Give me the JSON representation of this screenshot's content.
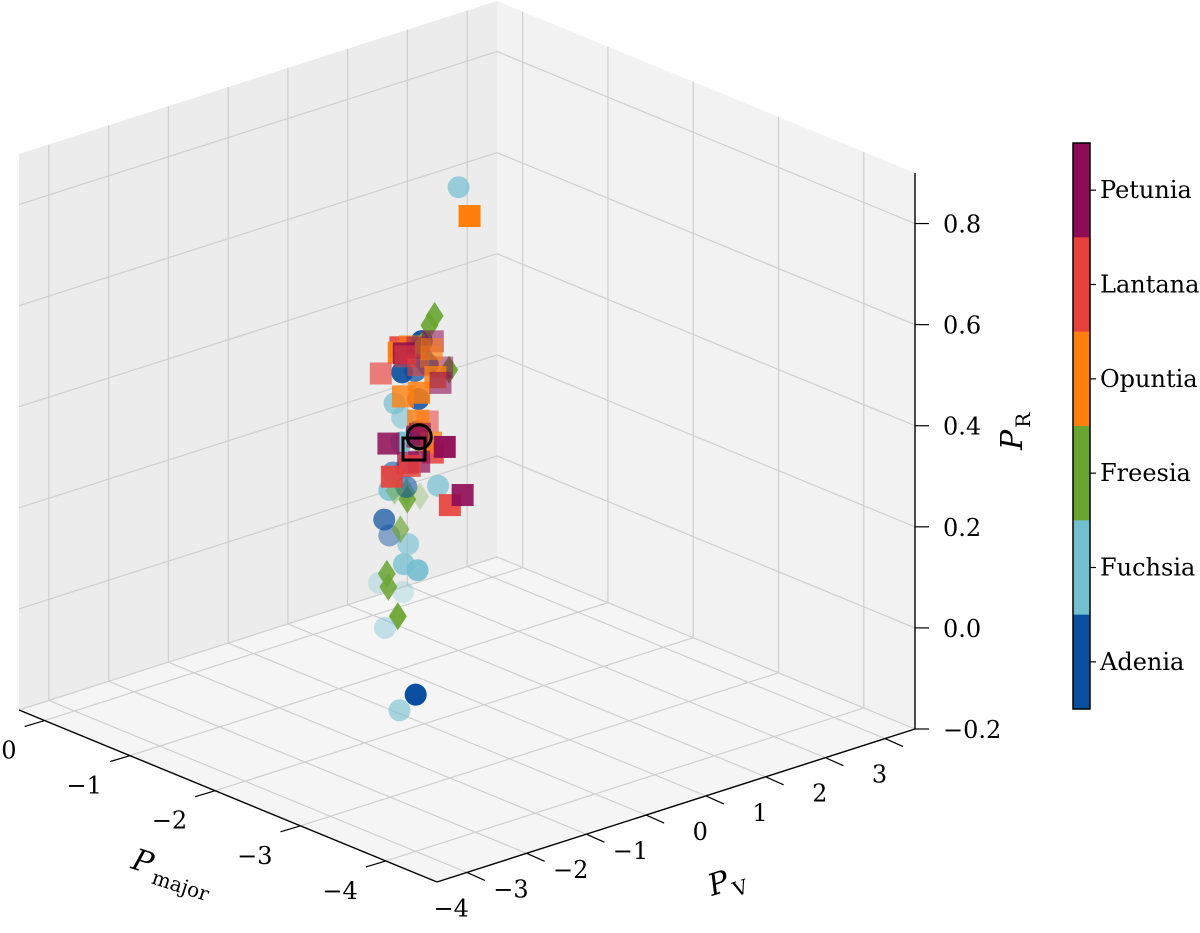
{
  "chart_data": {
    "type": "scatter",
    "projection": "3d",
    "title": "",
    "axes": {
      "x": {
        "label": "P",
        "label_sub": "major",
        "range": [
          -4.6,
          0.3
        ],
        "ticks": [
          "−4",
          "−3",
          "−2",
          "−1",
          "0"
        ],
        "tick_values": [
          -4,
          -3,
          -2,
          -1,
          0
        ]
      },
      "y": {
        "label": "P",
        "label_sub": "V",
        "range": [
          -4.5,
          3.5
        ],
        "ticks": [
          "−4",
          "−3",
          "−2",
          "−1",
          "0",
          "1",
          "2",
          "3"
        ],
        "tick_values": [
          -4,
          -3,
          -2,
          -1,
          0,
          1,
          2,
          3
        ]
      },
      "z": {
        "label": "P",
        "label_sub": "R",
        "range": [
          -0.2,
          0.9
        ],
        "ticks": [
          "−0.2",
          "0.0",
          "0.2",
          "0.4",
          "0.6",
          "0.8"
        ],
        "tick_values": [
          -0.2,
          0,
          0.2,
          0.4,
          0.6,
          0.8
        ]
      }
    },
    "grid": true,
    "colorbar": {
      "placement": "right",
      "categories": [
        {
          "name": "Petunia",
          "color": "#8e0b55"
        },
        {
          "name": "Lantana",
          "color": "#e8403a"
        },
        {
          "name": "Opuntia",
          "color": "#ff7f0e"
        },
        {
          "name": "Freesia",
          "color": "#6aa531"
        },
        {
          "name": "Fuchsia",
          "color": "#73bfd0"
        },
        {
          "name": "Adenia",
          "color": "#0a4ea0"
        }
      ]
    },
    "marker_shapes": {
      "Petunia": "square",
      "Lantana": "square",
      "Opuntia": "square",
      "Freesia": "diamond",
      "Fuchsia": "circle",
      "Adenia": "circle"
    },
    "series": [
      {
        "name": "Petunia",
        "points": [
          {
            "x": -3.5,
            "y": -2.8,
            "z": 0.52,
            "a": 0.95
          },
          {
            "x": -3.0,
            "y": -2.5,
            "z": 0.5,
            "a": 0.55
          },
          {
            "x": -3.2,
            "y": -2.8,
            "z": 0.47,
            "a": 0.7
          },
          {
            "x": -3.6,
            "y": -3.4,
            "z": 0.57,
            "a": 0.7
          },
          {
            "x": -3.0,
            "y": -2.7,
            "z": 0.45,
            "a": 0.65
          },
          {
            "x": -3.4,
            "y": -3.6,
            "z": 0.55,
            "a": 0.85
          },
          {
            "x": -2.8,
            "y": -2.0,
            "z": 0.65,
            "a": 0.55
          },
          {
            "x": -4.2,
            "y": -3.5,
            "z": 0.5,
            "a": 0.9
          },
          {
            "x": -3.1,
            "y": -2.3,
            "z": 0.6,
            "a": 0.6
          },
          {
            "x": -2.7,
            "y": -1.7,
            "z": 0.58,
            "a": 0.5
          },
          {
            "x": -2.9,
            "y": -2.4,
            "z": 0.66,
            "a": 0.45
          },
          {
            "x": -2.6,
            "y": -2.2,
            "z": 0.62,
            "a": 0.85
          }
        ]
      },
      {
        "name": "Lantana",
        "points": [
          {
            "x": -2.0,
            "y": -1.4,
            "z": 0.56,
            "a": 0.9
          },
          {
            "x": -3.3,
            "y": -3.4,
            "z": 0.47,
            "a": 0.9
          },
          {
            "x": -2.8,
            "y": -2.0,
            "z": 0.43,
            "a": 0.85
          },
          {
            "x": -2.4,
            "y": -2.3,
            "z": 0.57,
            "a": 0.65
          },
          {
            "x": -2.6,
            "y": -1.8,
            "z": 0.47,
            "a": 0.55
          },
          {
            "x": -3.0,
            "y": -2.0,
            "z": 0.34,
            "a": 0.9
          },
          {
            "x": -2.7,
            "y": -2.1,
            "z": 0.6,
            "a": 0.6
          },
          {
            "x": -3.3,
            "y": -3.1,
            "z": 0.48,
            "a": 0.8
          },
          {
            "x": -2.9,
            "y": -2.6,
            "z": 0.65,
            "a": 0.5
          }
        ]
      },
      {
        "name": "Opuntia",
        "points": [
          {
            "x": -2.6,
            "y": -1.1,
            "z": 0.85,
            "a": 1.0
          },
          {
            "x": -2.8,
            "y": -2.5,
            "z": 0.56,
            "a": 0.8
          },
          {
            "x": -2.9,
            "y": -2.1,
            "z": 0.59,
            "a": 0.8
          },
          {
            "x": -3.2,
            "y": -2.6,
            "z": 0.5,
            "a": 0.75
          },
          {
            "x": -2.5,
            "y": -1.8,
            "z": 0.52,
            "a": 0.85
          },
          {
            "x": -2.7,
            "y": -2.1,
            "z": 0.49,
            "a": 0.8
          },
          {
            "x": -2.4,
            "y": -2.0,
            "z": 0.6,
            "a": 0.95
          },
          {
            "x": -3.0,
            "y": -2.3,
            "z": 0.66,
            "a": 0.55
          },
          {
            "x": -3.2,
            "y": -2.6,
            "z": 0.67,
            "a": 0.35
          },
          {
            "x": -2.6,
            "y": -2.1,
            "z": 0.63,
            "a": 0.65
          }
        ]
      },
      {
        "name": "Freesia",
        "points": [
          {
            "x": -2.4,
            "y": -1.4,
            "z": 0.65,
            "a": 0.9
          },
          {
            "x": -2.4,
            "y": -1.6,
            "z": 0.6,
            "a": 0.85
          },
          {
            "x": -2.2,
            "y": -1.2,
            "z": 0.61,
            "a": 0.9
          },
          {
            "x": -2.1,
            "y": -1.2,
            "z": 0.56,
            "a": 0.85
          },
          {
            "x": -1.8,
            "y": -0.3,
            "z": 0.46,
            "a": 0.95
          },
          {
            "x": -2.2,
            "y": -1.4,
            "z": 0.39,
            "a": 0.75
          },
          {
            "x": -2.3,
            "y": -1.5,
            "z": 0.29,
            "a": 0.3
          },
          {
            "x": -2.0,
            "y": -1.5,
            "z": 0.28,
            "a": 0.45
          },
          {
            "x": -2.0,
            "y": -1.3,
            "z": 0.27,
            "a": 0.55
          },
          {
            "x": -1.8,
            "y": -1.0,
            "z": 0.23,
            "a": 0.85
          },
          {
            "x": -2.0,
            "y": -1.4,
            "z": 0.2,
            "a": 0.65
          },
          {
            "x": -3.3,
            "y": -3.3,
            "z": 0.19,
            "a": 0.95
          },
          {
            "x": -2.7,
            "y": -2.6,
            "z": 0.18,
            "a": 0.85
          },
          {
            "x": -2.4,
            "y": -2.2,
            "z": 0.17,
            "a": 0.85
          }
        ]
      },
      {
        "name": "Fuchsia",
        "points": [
          {
            "x": -0.3,
            "y": 2.0,
            "z": 0.63,
            "a": 0.7
          },
          {
            "x": -1.6,
            "y": -0.8,
            "z": 0.37,
            "a": 0.55
          },
          {
            "x": -1.8,
            "y": -1.3,
            "z": 0.26,
            "a": 0.8
          },
          {
            "x": -3.5,
            "y": -3.8,
            "z": 0.2,
            "a": 0.4
          },
          {
            "x": -2.1,
            "y": -1.9,
            "z": 0.12,
            "a": 0.3
          },
          {
            "x": -1.1,
            "y": -0.1,
            "z": 0.26,
            "a": 0.95
          },
          {
            "x": -0.6,
            "y": 0.5,
            "z": 0.28,
            "a": 0.7
          },
          {
            "x": -0.8,
            "y": 0.4,
            "z": 0.17,
            "a": 0.65
          },
          {
            "x": -3.6,
            "y": -3.7,
            "z": 0.04,
            "a": 0.6
          },
          {
            "x": -1.2,
            "y": -0.2,
            "z": 0.03,
            "a": 0.75
          },
          {
            "x": -0.9,
            "y": 0.3,
            "z": 0.03,
            "a": 0.6
          },
          {
            "x": -0.2,
            "y": 1.8,
            "z": 0.04,
            "a": 0.7
          },
          {
            "x": -0.8,
            "y": 0.6,
            "z": -0.04,
            "a": 0.9
          },
          {
            "x": -1.4,
            "y": -0.5,
            "z": 0.0,
            "a": 0.3
          }
        ]
      },
      {
        "name": "Adenia",
        "points": [
          {
            "x": -1.6,
            "y": -0.8,
            "z": 0.46,
            "a": 0.9
          },
          {
            "x": -1.3,
            "y": -0.1,
            "z": 0.46,
            "a": 0.95
          },
          {
            "x": -1.2,
            "y": 0.1,
            "z": 0.46,
            "a": 0.95
          },
          {
            "x": -1.4,
            "y": -0.3,
            "z": 0.43,
            "a": 0.7
          },
          {
            "x": -1.2,
            "y": 0.2,
            "z": 0.41,
            "a": 0.9
          },
          {
            "x": -1.0,
            "y": 0.4,
            "z": 0.4,
            "a": 0.9
          },
          {
            "x": -1.3,
            "y": -0.1,
            "z": 0.36,
            "a": 0.85
          },
          {
            "x": -1.7,
            "y": -1.1,
            "z": 0.28,
            "a": 0.55
          },
          {
            "x": -2.0,
            "y": -1.3,
            "z": 0.28,
            "a": 0.55
          },
          {
            "x": -1.0,
            "y": 0.3,
            "z": 0.26,
            "a": 0.95
          },
          {
            "x": -1.6,
            "y": -1.1,
            "z": 0.18,
            "a": 0.7
          },
          {
            "x": -1.8,
            "y": -1.3,
            "z": 0.17,
            "a": 0.45
          },
          {
            "x": -0.5,
            "y": 1.1,
            "z": 0.18,
            "a": 0.95
          },
          {
            "x": -4.0,
            "y": -4.0,
            "z": 0.11,
            "a": 1.0
          }
        ]
      }
    ],
    "highlighted": [
      {
        "shape": "open-square",
        "x": -3.7,
        "y": -3.6,
        "z": 0.56
      },
      {
        "shape": "open-circle",
        "x": -1.1,
        "y": 0.2,
        "z": 0.26
      }
    ]
  }
}
